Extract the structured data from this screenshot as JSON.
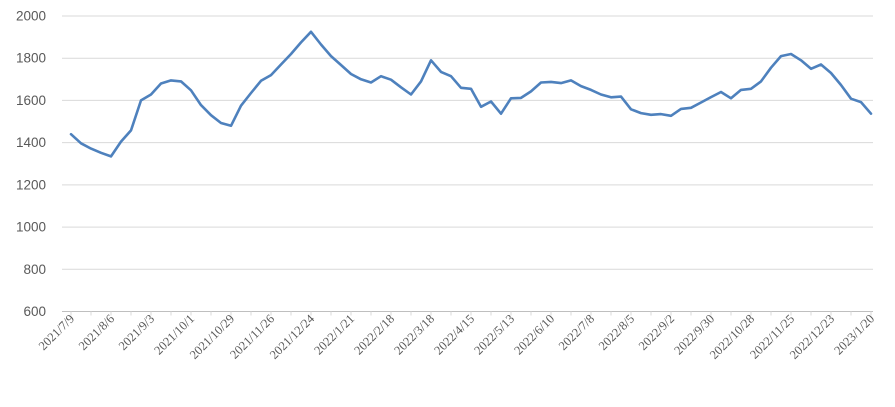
{
  "chart_data": {
    "type": "line",
    "x_labels": [
      "2021/7/9",
      "2021/8/6",
      "2021/9/3",
      "2021/10/1",
      "2021/10/29",
      "2021/11/26",
      "2021/12/24",
      "2022/1/21",
      "2022/2/18",
      "2022/3/18",
      "2022/4/15",
      "2022/5/13",
      "2022/6/10",
      "2022/7/8",
      "2022/8/5",
      "2022/9/2",
      "2022/9/30",
      "2022/10/28",
      "2022/11/25",
      "2022/12/23",
      "2023/1/20"
    ],
    "points_per_label": 4,
    "values": [
      1440,
      1397,
      1372,
      1352,
      1335,
      1405,
      1458,
      1600,
      1628,
      1680,
      1695,
      1690,
      1648,
      1578,
      1530,
      1493,
      1480,
      1575,
      1635,
      1693,
      1720,
      1770,
      1820,
      1875,
      1925,
      1865,
      1810,
      1768,
      1725,
      1700,
      1685,
      1715,
      1698,
      1662,
      1628,
      1690,
      1790,
      1735,
      1715,
      1660,
      1655,
      1570,
      1595,
      1537,
      1610,
      1612,
      1643,
      1685,
      1688,
      1682,
      1695,
      1668,
      1650,
      1628,
      1615,
      1618,
      1558,
      1540,
      1532,
      1535,
      1527,
      1560,
      1565,
      1590,
      1616,
      1640,
      1610,
      1650,
      1655,
      1690,
      1755,
      1810,
      1820,
      1790,
      1750,
      1770,
      1730,
      1673,
      1608,
      1592,
      1537
    ],
    "ylim": [
      600,
      2000
    ],
    "yticks": [
      600,
      800,
      1000,
      1200,
      1400,
      1600,
      1800,
      2000
    ],
    "grid": "horizontal",
    "legend": "none",
    "line_color": "#4e81bd",
    "gridline_color": "#d9d9d9",
    "axis_color": "#bfbfbf",
    "label_color": "#595959"
  }
}
